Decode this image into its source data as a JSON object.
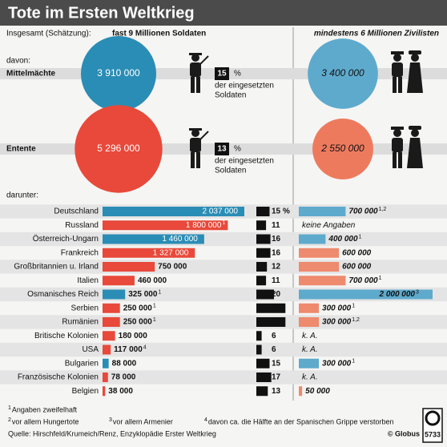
{
  "chart_data": {
    "type": "infographic",
    "title": "Tote im Ersten Weltkrieg",
    "left_header": "Insgesamt (Schätzung):",
    "left_header_bold": "fast 9 Millionen Soldaten",
    "right_header": "mindestens 6 Millionen Zivilisten",
    "davon": "davon:",
    "percent_sign": "%",
    "share_text": [
      "der eingesetzten",
      "Soldaten"
    ],
    "groups": [
      {
        "name": "Mittelmächte",
        "soldiers": 3910000,
        "soldiers_label": "3 910 000",
        "share": 15,
        "civilians": 3400000,
        "civilians_label": "3 400 000",
        "color": "#2a8db5",
        "civ_color": "#5eaacd"
      },
      {
        "name": "Entente",
        "soldiers": 5296000,
        "soldiers_label": "5 296 000",
        "share": 13,
        "civilians": 2550000,
        "civilians_label": "2 550 000",
        "color": "#e8493a",
        "civ_color": "#ee7a5e"
      }
    ],
    "darunter": "darunter:",
    "countries": [
      {
        "name": "Deutschland",
        "soldiers": 2037000,
        "soldiers_label": "2 037 000",
        "share": 15,
        "civilians": 700000,
        "civilians_label": "700 000",
        "civ_note": "1,2",
        "color": "#2a8db5",
        "civ_color": "#5eaacd"
      },
      {
        "name": "Russland",
        "soldiers": 1800000,
        "soldiers_label": "1 800 000",
        "soldiers_note": "1",
        "share": 11,
        "civilians": null,
        "civilians_label": "keine Angaben",
        "color": "#e8493a",
        "civ_color": "#ee8a6e"
      },
      {
        "name": "Österreich-Ungarn",
        "soldiers": 1460000,
        "soldiers_label": "1 460 000",
        "share": 16,
        "civilians": 400000,
        "civilians_label": "400 000",
        "civ_note": "1",
        "color": "#2a8db5",
        "civ_color": "#5eaacd"
      },
      {
        "name": "Frankreich",
        "soldiers": 1327000,
        "soldiers_label": "1 327 000",
        "share": 16,
        "civilians": 600000,
        "civilians_label": "600 000",
        "color": "#e8493a",
        "civ_color": "#ee8a6e"
      },
      {
        "name": "Großbritannien u. Irland",
        "soldiers": 750000,
        "soldiers_label": "750 000",
        "share": 12,
        "civilians": 600000,
        "civilians_label": "600 000",
        "color": "#e8493a",
        "civ_color": "#ee8a6e"
      },
      {
        "name": "Italien",
        "soldiers": 460000,
        "soldiers_label": "460 000",
        "share": 11,
        "civilians": 700000,
        "civilians_label": "700 000",
        "civ_note": "1",
        "color": "#e8493a",
        "civ_color": "#ee8a6e"
      },
      {
        "name": "Osmanisches Reich",
        "soldiers": 325000,
        "soldiers_label": "325 000",
        "soldiers_note": "1",
        "share": 20,
        "civilians": 2000000,
        "civilians_label": "2 000 000",
        "civ_note": "3",
        "color": "#2a8db5",
        "civ_color": "#5eaacd"
      },
      {
        "name": "Serbien",
        "soldiers": 250000,
        "soldiers_label": "250 000",
        "soldiers_note": "1",
        "share": 33,
        "civilians": 300000,
        "civilians_label": "300 000",
        "civ_note": "1",
        "color": "#e8493a",
        "civ_color": "#ee8a6e"
      },
      {
        "name": "Rumänien",
        "soldiers": 250000,
        "soldiers_label": "250 000",
        "soldiers_note": "1",
        "share": 33,
        "civilians": 300000,
        "civilians_label": "300 000",
        "civ_note": "1,2",
        "color": "#e8493a",
        "civ_color": "#ee8a6e"
      },
      {
        "name": "Britische Kolonien",
        "soldiers": 180000,
        "soldiers_label": "180 000",
        "share": 6,
        "civilians": null,
        "civilians_label": "k. A.",
        "color": "#e8493a",
        "civ_color": "#ee8a6e"
      },
      {
        "name": "USA",
        "soldiers": 117000,
        "soldiers_label": "117 000",
        "soldiers_note": "4",
        "share": 6,
        "civilians": null,
        "civilians_label": "k. A.",
        "color": "#e8493a",
        "civ_color": "#ee8a6e"
      },
      {
        "name": "Bulgarien",
        "soldiers": 88000,
        "soldiers_label": "88 000",
        "share": 15,
        "civilians": 300000,
        "civilians_label": "300 000",
        "civ_note": "1",
        "color": "#2a8db5",
        "civ_color": "#5eaacd"
      },
      {
        "name": "Französische Kolonien",
        "soldiers": 78000,
        "soldiers_label": "78 000",
        "share": 17,
        "civilians": null,
        "civilians_label": "k. A.",
        "color": "#e8493a",
        "civ_color": "#ee8a6e"
      },
      {
        "name": "Belgien",
        "soldiers": 38000,
        "soldiers_label": "38 000",
        "share": 13,
        "civilians": 50000,
        "civilians_label": "50 000",
        "color": "#e8493a",
        "civ_color": "#ee8a6e"
      }
    ],
    "footnotes": [
      {
        "mark": "1",
        "text": "Angaben zweifelhaft"
      },
      {
        "mark": "2",
        "text": "vor allem Hungertote"
      },
      {
        "mark": "3",
        "text": "vor allem Armenier"
      },
      {
        "mark": "4",
        "text": "davon ca. die Hälfte an der Spanischen Grippe verstorben"
      }
    ],
    "source": "Quelle: Hirschfeld/Krumeich/Renz, Enzyklopädie Erster Weltkrieg",
    "copyright": "© Globus",
    "number": "5733"
  }
}
